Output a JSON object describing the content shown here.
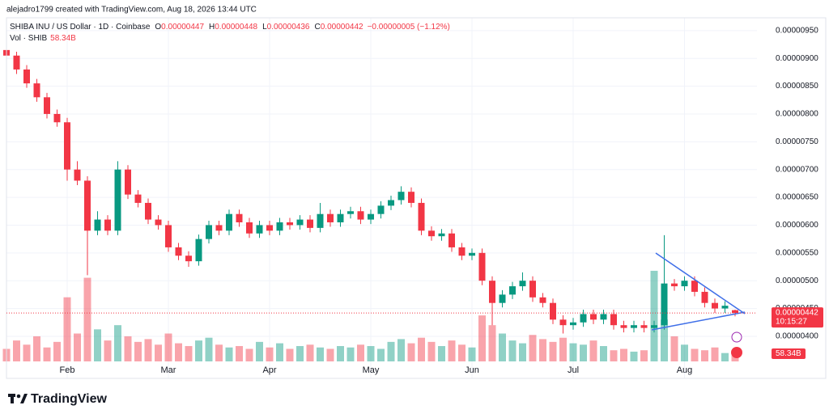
{
  "header": {
    "attribution": "alejadro1799 created with TradingView.com, Aug 18, 2026 13:44 UTC"
  },
  "chart_data": {
    "type": "candlestick",
    "symbol": "SHIBA INU / US Dollar · 1D · Coinbase",
    "ohlc_legend": [
      {
        "label": "O",
        "value": "0.00000447"
      },
      {
        "label": "H",
        "value": "0.00000448"
      },
      {
        "label": "L",
        "value": "0.00000436"
      },
      {
        "label": "C",
        "value": "0.00000442"
      }
    ],
    "change": "−0.00000005 (−1.12%)",
    "last_price_label": "0.00000442",
    "countdown": "10:15:27",
    "up_color": "#089981",
    "down_color": "#f23645",
    "categories": [
      null,
      null,
      null,
      null,
      null,
      null,
      "Feb",
      null,
      null,
      null,
      null,
      null,
      null,
      null,
      null,
      null,
      "Mar",
      null,
      null,
      null,
      null,
      null,
      null,
      null,
      null,
      null,
      "Apr",
      null,
      null,
      null,
      null,
      null,
      null,
      null,
      null,
      null,
      "May",
      null,
      null,
      null,
      null,
      null,
      null,
      null,
      null,
      null,
      "Jun",
      null,
      null,
      null,
      null,
      null,
      null,
      null,
      null,
      null,
      "Jul",
      null,
      null,
      null,
      null,
      null,
      null,
      null,
      null,
      null,
      null,
      "Aug",
      null,
      null,
      null,
      null,
      null
    ],
    "candles": [
      [
        9.15e-06,
        9.2e-06,
        8.97e-06,
        9.05e-06
      ],
      [
        9.05e-06,
        9.12e-06,
        8.72e-06,
        8.8e-06
      ],
      [
        8.8e-06,
        8.88e-06,
        8.47e-06,
        8.55e-06
      ],
      [
        8.55e-06,
        8.63e-06,
        8.22e-06,
        8.3e-06
      ],
      [
        8.3e-06,
        8.38e-06,
        7.92e-06,
        8e-06
      ],
      [
        8e-06,
        8.08e-06,
        7.77e-06,
        7.85e-06
      ],
      [
        7.85e-06,
        7.93e-06,
        6.8e-06,
        7e-06
      ],
      [
        7e-06,
        7.15e-06,
        6.72e-06,
        6.8e-06
      ],
      [
        6.8e-06,
        6.88e-06,
        5.1e-06,
        5.9e-06
      ],
      [
        5.9e-06,
        6.25e-06,
        5.82e-06,
        6.1e-06
      ],
      [
        6.1e-06,
        6.18e-06,
        5.82e-06,
        5.9e-06
      ],
      [
        5.9e-06,
        7.15e-06,
        5.82e-06,
        7e-06
      ],
      [
        7e-06,
        7.08e-06,
        6.47e-06,
        6.55e-06
      ],
      [
        6.55e-06,
        6.63e-06,
        6.32e-06,
        6.4e-06
      ],
      [
        6.4e-06,
        6.48e-06,
        6.02e-06,
        6.1e-06
      ],
      [
        6.1e-06,
        6.18e-06,
        5.92e-06,
        6e-06
      ],
      [
        6e-06,
        6.08e-06,
        5.52e-06,
        5.6e-06
      ],
      [
        5.6e-06,
        5.68e-06,
        5.37e-06,
        5.45e-06
      ],
      [
        5.45e-06,
        5.53e-06,
        5.25e-06,
        5.35e-06
      ],
      [
        5.35e-06,
        5.83e-06,
        5.27e-06,
        5.75e-06
      ],
      [
        5.75e-06,
        6.08e-06,
        5.67e-06,
        6e-06
      ],
      [
        6e-06,
        6.08e-06,
        5.82e-06,
        5.9e-06
      ],
      [
        5.9e-06,
        6.28e-06,
        5.82e-06,
        6.2e-06
      ],
      [
        6.2e-06,
        6.28e-06,
        5.97e-06,
        6.05e-06
      ],
      [
        6.05e-06,
        6.13e-06,
        5.77e-06,
        5.85e-06
      ],
      [
        5.85e-06,
        6.08e-06,
        5.77e-06,
        6e-06
      ],
      [
        6e-06,
        6.08e-06,
        5.82e-06,
        5.9e-06
      ],
      [
        5.9e-06,
        6.13e-06,
        5.82e-06,
        6.05e-06
      ],
      [
        6.05e-06,
        6.13e-06,
        5.92e-06,
        6e-06
      ],
      [
        6e-06,
        6.18e-06,
        5.92e-06,
        6.1e-06
      ],
      [
        6.1e-06,
        6.18e-06,
        5.87e-06,
        5.95e-06
      ],
      [
        5.95e-06,
        6.4e-06,
        5.87e-06,
        6.2e-06
      ],
      [
        6.2e-06,
        6.28e-06,
        5.97e-06,
        6.05e-06
      ],
      [
        6.05e-06,
        6.28e-06,
        5.97e-06,
        6.2e-06
      ],
      [
        6.2e-06,
        6.33e-06,
        6.12e-06,
        6.25e-06
      ],
      [
        6.25e-06,
        6.33e-06,
        6.02e-06,
        6.1e-06
      ],
      [
        6.1e-06,
        6.28e-06,
        6.02e-06,
        6.2e-06
      ],
      [
        6.2e-06,
        6.43e-06,
        6.12e-06,
        6.35e-06
      ],
      [
        6.35e-06,
        6.53e-06,
        6.27e-06,
        6.45e-06
      ],
      [
        6.45e-06,
        6.7e-06,
        6.37e-06,
        6.6e-06
      ],
      [
        6.6e-06,
        6.68e-06,
        6.32e-06,
        6.4e-06
      ],
      [
        6.4e-06,
        6.48e-06,
        5.82e-06,
        5.9e-06
      ],
      [
        5.9e-06,
        5.98e-06,
        5.72e-06,
        5.8e-06
      ],
      [
        5.8e-06,
        5.93e-06,
        5.72e-06,
        5.85e-06
      ],
      [
        5.85e-06,
        5.93e-06,
        5.52e-06,
        5.6e-06
      ],
      [
        5.6e-06,
        5.68e-06,
        5.37e-06,
        5.45e-06
      ],
      [
        5.45e-06,
        5.58e-06,
        5.37e-06,
        5.5e-06
      ],
      [
        5.5e-06,
        5.58e-06,
        4.92e-06,
        5e-06
      ],
      [
        5e-06,
        5.08e-06,
        4.2e-06,
        4.6e-06
      ],
      [
        4.6e-06,
        4.83e-06,
        4.52e-06,
        4.75e-06
      ],
      [
        4.75e-06,
        4.98e-06,
        4.67e-06,
        4.9e-06
      ],
      [
        4.9e-06,
        5.15e-06,
        4.82e-06,
        5e-06
      ],
      [
        5e-06,
        5.08e-06,
        4.62e-06,
        4.7e-06
      ],
      [
        4.7e-06,
        4.78e-06,
        4.52e-06,
        4.6e-06
      ],
      [
        4.6e-06,
        4.68e-06,
        4.22e-06,
        4.3e-06
      ],
      [
        4.3e-06,
        4.38e-06,
        4.05e-06,
        4.2e-06
      ],
      [
        4.2e-06,
        4.33e-06,
        4.12e-06,
        4.25e-06
      ],
      [
        4.25e-06,
        4.48e-06,
        4.17e-06,
        4.4e-06
      ],
      [
        4.4e-06,
        4.48e-06,
        4.22e-06,
        4.3e-06
      ],
      [
        4.3e-06,
        4.48e-06,
        4.22e-06,
        4.4e-06
      ],
      [
        4.4e-06,
        4.48e-06,
        4.12e-06,
        4.2e-06
      ],
      [
        4.2e-06,
        4.28e-06,
        4.07e-06,
        4.15e-06
      ],
      [
        4.15e-06,
        4.28e-06,
        4.07e-06,
        4.2e-06
      ],
      [
        4.2e-06,
        4.28e-06,
        4.07e-06,
        4.15e-06
      ],
      [
        4.15e-06,
        4.28e-06,
        4.07e-06,
        4.2e-06
      ],
      [
        4.2e-06,
        5.82e-06,
        4.12e-06,
        4.95e-06
      ],
      [
        4.95e-06,
        5.03e-06,
        4.82e-06,
        4.9e-06
      ],
      [
        4.9e-06,
        5.08e-06,
        4.82e-06,
        5e-06
      ],
      [
        5e-06,
        5.08e-06,
        4.72e-06,
        4.8e-06
      ],
      [
        4.8e-06,
        4.88e-06,
        4.52e-06,
        4.6e-06
      ],
      [
        4.6e-06,
        4.68e-06,
        4.42e-06,
        4.5e-06
      ],
      [
        4.5e-06,
        4.63e-06,
        4.42e-06,
        4.55e-06
      ],
      [
        4.47e-06,
        4.48e-06,
        4.36e-06,
        4.42e-06
      ]
    ],
    "volume": {
      "name": "Vol · SHIB",
      "last_value_label": "58.34B",
      "values": [
        90,
        150,
        120,
        180,
        100,
        140,
        460,
        200,
        600,
        230,
        150,
        260,
        180,
        140,
        160,
        120,
        200,
        130,
        110,
        150,
        170,
        120,
        100,
        110,
        90,
        140,
        100,
        130,
        90,
        110,
        120,
        100,
        90,
        110,
        100,
        120,
        110,
        90,
        140,
        160,
        130,
        170,
        140,
        110,
        150,
        120,
        100,
        330,
        260,
        200,
        150,
        130,
        190,
        160,
        140,
        170,
        130,
        120,
        150,
        110,
        80,
        90,
        70,
        80,
        650,
        300,
        180,
        120,
        90,
        80,
        100,
        60,
        58.34
      ]
    },
    "ylim": [
      3.33e-06,
      9.73e-06
    ],
    "yticks": [
      {
        "value": 4e-06,
        "label": "0.00000400"
      },
      {
        "value": 4.5e-06,
        "label": "0.00000450"
      },
      {
        "value": 5e-06,
        "label": "0.00000500"
      },
      {
        "value": 5.5e-06,
        "label": "0.00000550"
      },
      {
        "value": 6e-06,
        "label": "0.00000600"
      },
      {
        "value": 6.5e-06,
        "label": "0.00000650"
      },
      {
        "value": 7e-06,
        "label": "0.00000700"
      },
      {
        "value": 7.5e-06,
        "label": "0.00000750"
      },
      {
        "value": 8e-06,
        "label": "0.00000800"
      },
      {
        "value": 8.5e-06,
        "label": "0.00000850"
      },
      {
        "value": 9e-06,
        "label": "0.00000900"
      },
      {
        "value": 9.5e-06,
        "label": "0.00000950"
      }
    ],
    "grid": true
  },
  "footer": {
    "brand": "TradingView"
  }
}
